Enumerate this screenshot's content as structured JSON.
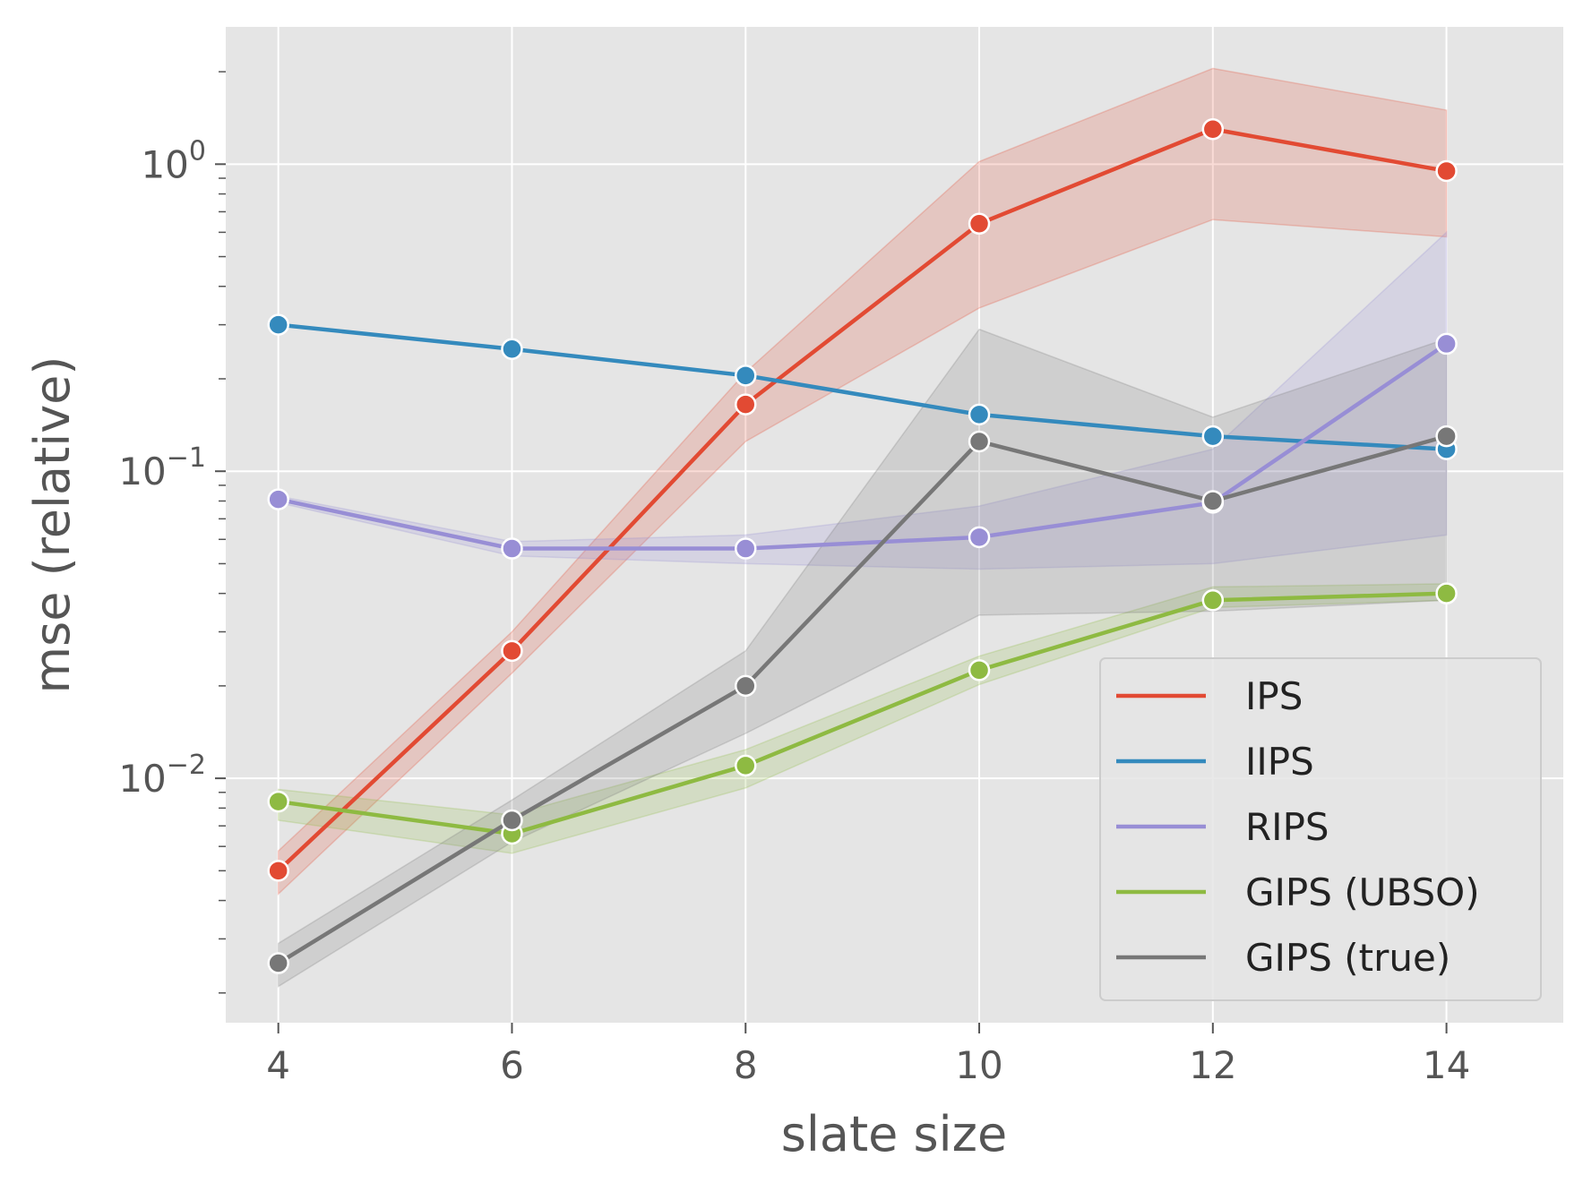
{
  "chart_data": {
    "type": "line",
    "title": "",
    "xlabel": "slate size",
    "ylabel": "mse (relative)",
    "x": [
      4,
      6,
      8,
      10,
      12,
      14
    ],
    "xlim": [
      3.55,
      15.0
    ],
    "ylim": [
      0.0016,
      2.8
    ],
    "yscale": "log",
    "x_ticks": [
      4,
      6,
      8,
      10,
      12,
      14
    ],
    "y_ticks": [
      {
        "value": 0.01,
        "base": "10",
        "exp": "−2"
      },
      {
        "value": 0.1,
        "base": "10",
        "exp": "−1"
      },
      {
        "value": 1,
        "base": "10",
        "exp": "0"
      }
    ],
    "grid": true,
    "legend": "lower-right",
    "series": [
      {
        "name": "IPS",
        "color": "#E24A33",
        "values": [
          0.005,
          0.026,
          0.165,
          0.64,
          1.3,
          0.95
        ],
        "lower": [
          0.0042,
          0.022,
          0.125,
          0.34,
          0.66,
          0.58
        ],
        "upper": [
          0.0058,
          0.03,
          0.21,
          1.02,
          2.05,
          1.5
        ]
      },
      {
        "name": "IIPS",
        "color": "#348ABD",
        "values": [
          0.3,
          0.25,
          0.205,
          0.153,
          0.13,
          0.118
        ],
        "lower": [
          0.3,
          0.25,
          0.205,
          0.153,
          0.13,
          0.118
        ],
        "upper": [
          0.3,
          0.25,
          0.205,
          0.153,
          0.13,
          0.118
        ]
      },
      {
        "name": "RIPS",
        "color": "#988ED5",
        "values": [
          0.081,
          0.056,
          0.056,
          0.061,
          0.079,
          0.26
        ],
        "lower": [
          0.079,
          0.053,
          0.05,
          0.048,
          0.05,
          0.062
        ],
        "upper": [
          0.083,
          0.059,
          0.062,
          0.077,
          0.118,
          0.6
        ]
      },
      {
        "name": "GIPS (UBSO)",
        "color": "#8EBA42",
        "values": [
          0.0084,
          0.0066,
          0.011,
          0.0225,
          0.038,
          0.04
        ],
        "lower": [
          0.0073,
          0.0057,
          0.0093,
          0.0202,
          0.036,
          0.038
        ],
        "upper": [
          0.0092,
          0.0076,
          0.0124,
          0.025,
          0.042,
          0.043
        ]
      },
      {
        "name": "GIPS (true)",
        "color": "#777777",
        "values": [
          0.0025,
          0.0073,
          0.02,
          0.125,
          0.08,
          0.13
        ],
        "lower": [
          0.0021,
          0.0062,
          0.014,
          0.034,
          0.035,
          0.038
        ],
        "upper": [
          0.0029,
          0.0085,
          0.026,
          0.29,
          0.15,
          0.27
        ]
      }
    ]
  }
}
